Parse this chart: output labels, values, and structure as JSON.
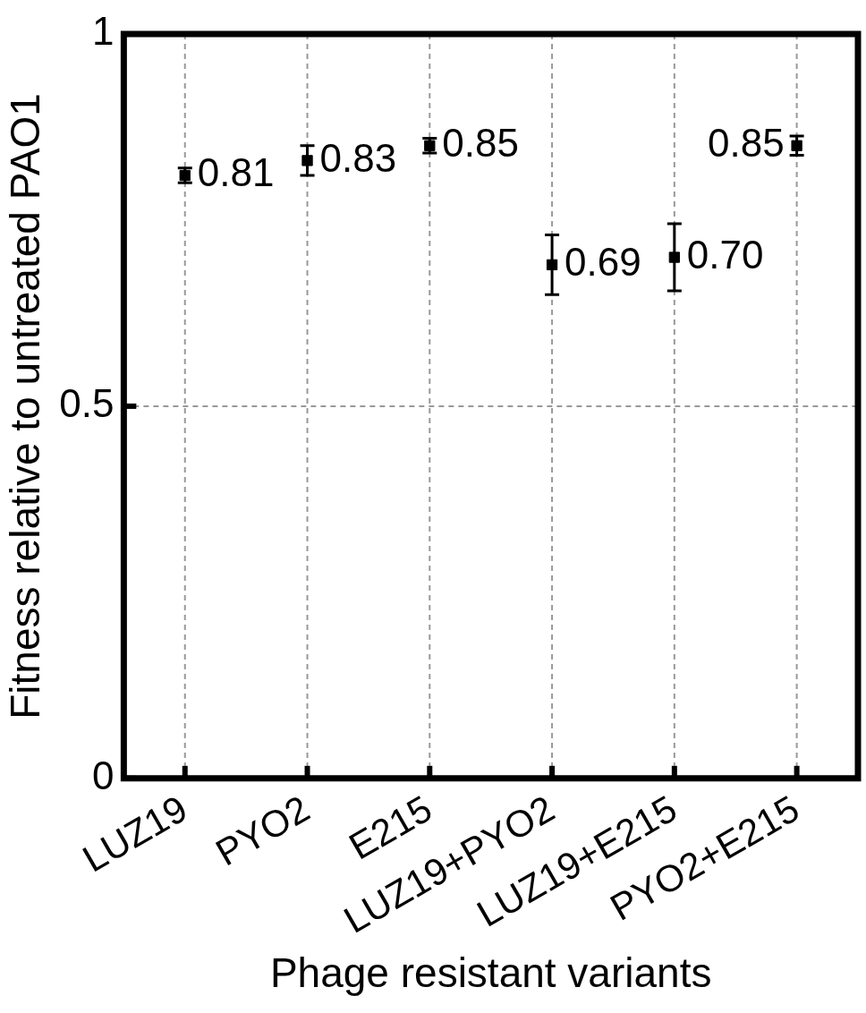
{
  "chart_data": {
    "type": "scatter",
    "xlabel": "Phage resistant variants",
    "ylabel": "Fitness relative to untreated PAO1",
    "categories": [
      "LUZ19",
      "PYO2",
      "E215",
      "LUZ19+PYO2",
      "LUZ19+E215",
      "PYO2+E215"
    ],
    "series": [
      {
        "color": "#000000",
        "values": [
          0.81,
          0.83,
          0.85,
          0.69,
          0.7,
          0.85
        ],
        "errors": [
          0.01,
          0.02,
          0.01,
          0.04,
          0.045,
          0.013
        ],
        "value_labels": [
          "0.81",
          "0.83",
          "0.85",
          "0.69",
          "0.70",
          "0.85"
        ]
      }
    ],
    "ylim": [
      0,
      1
    ],
    "yticks": [
      0,
      0.5,
      1
    ],
    "grid": true,
    "marker": "square",
    "legend": false
  }
}
